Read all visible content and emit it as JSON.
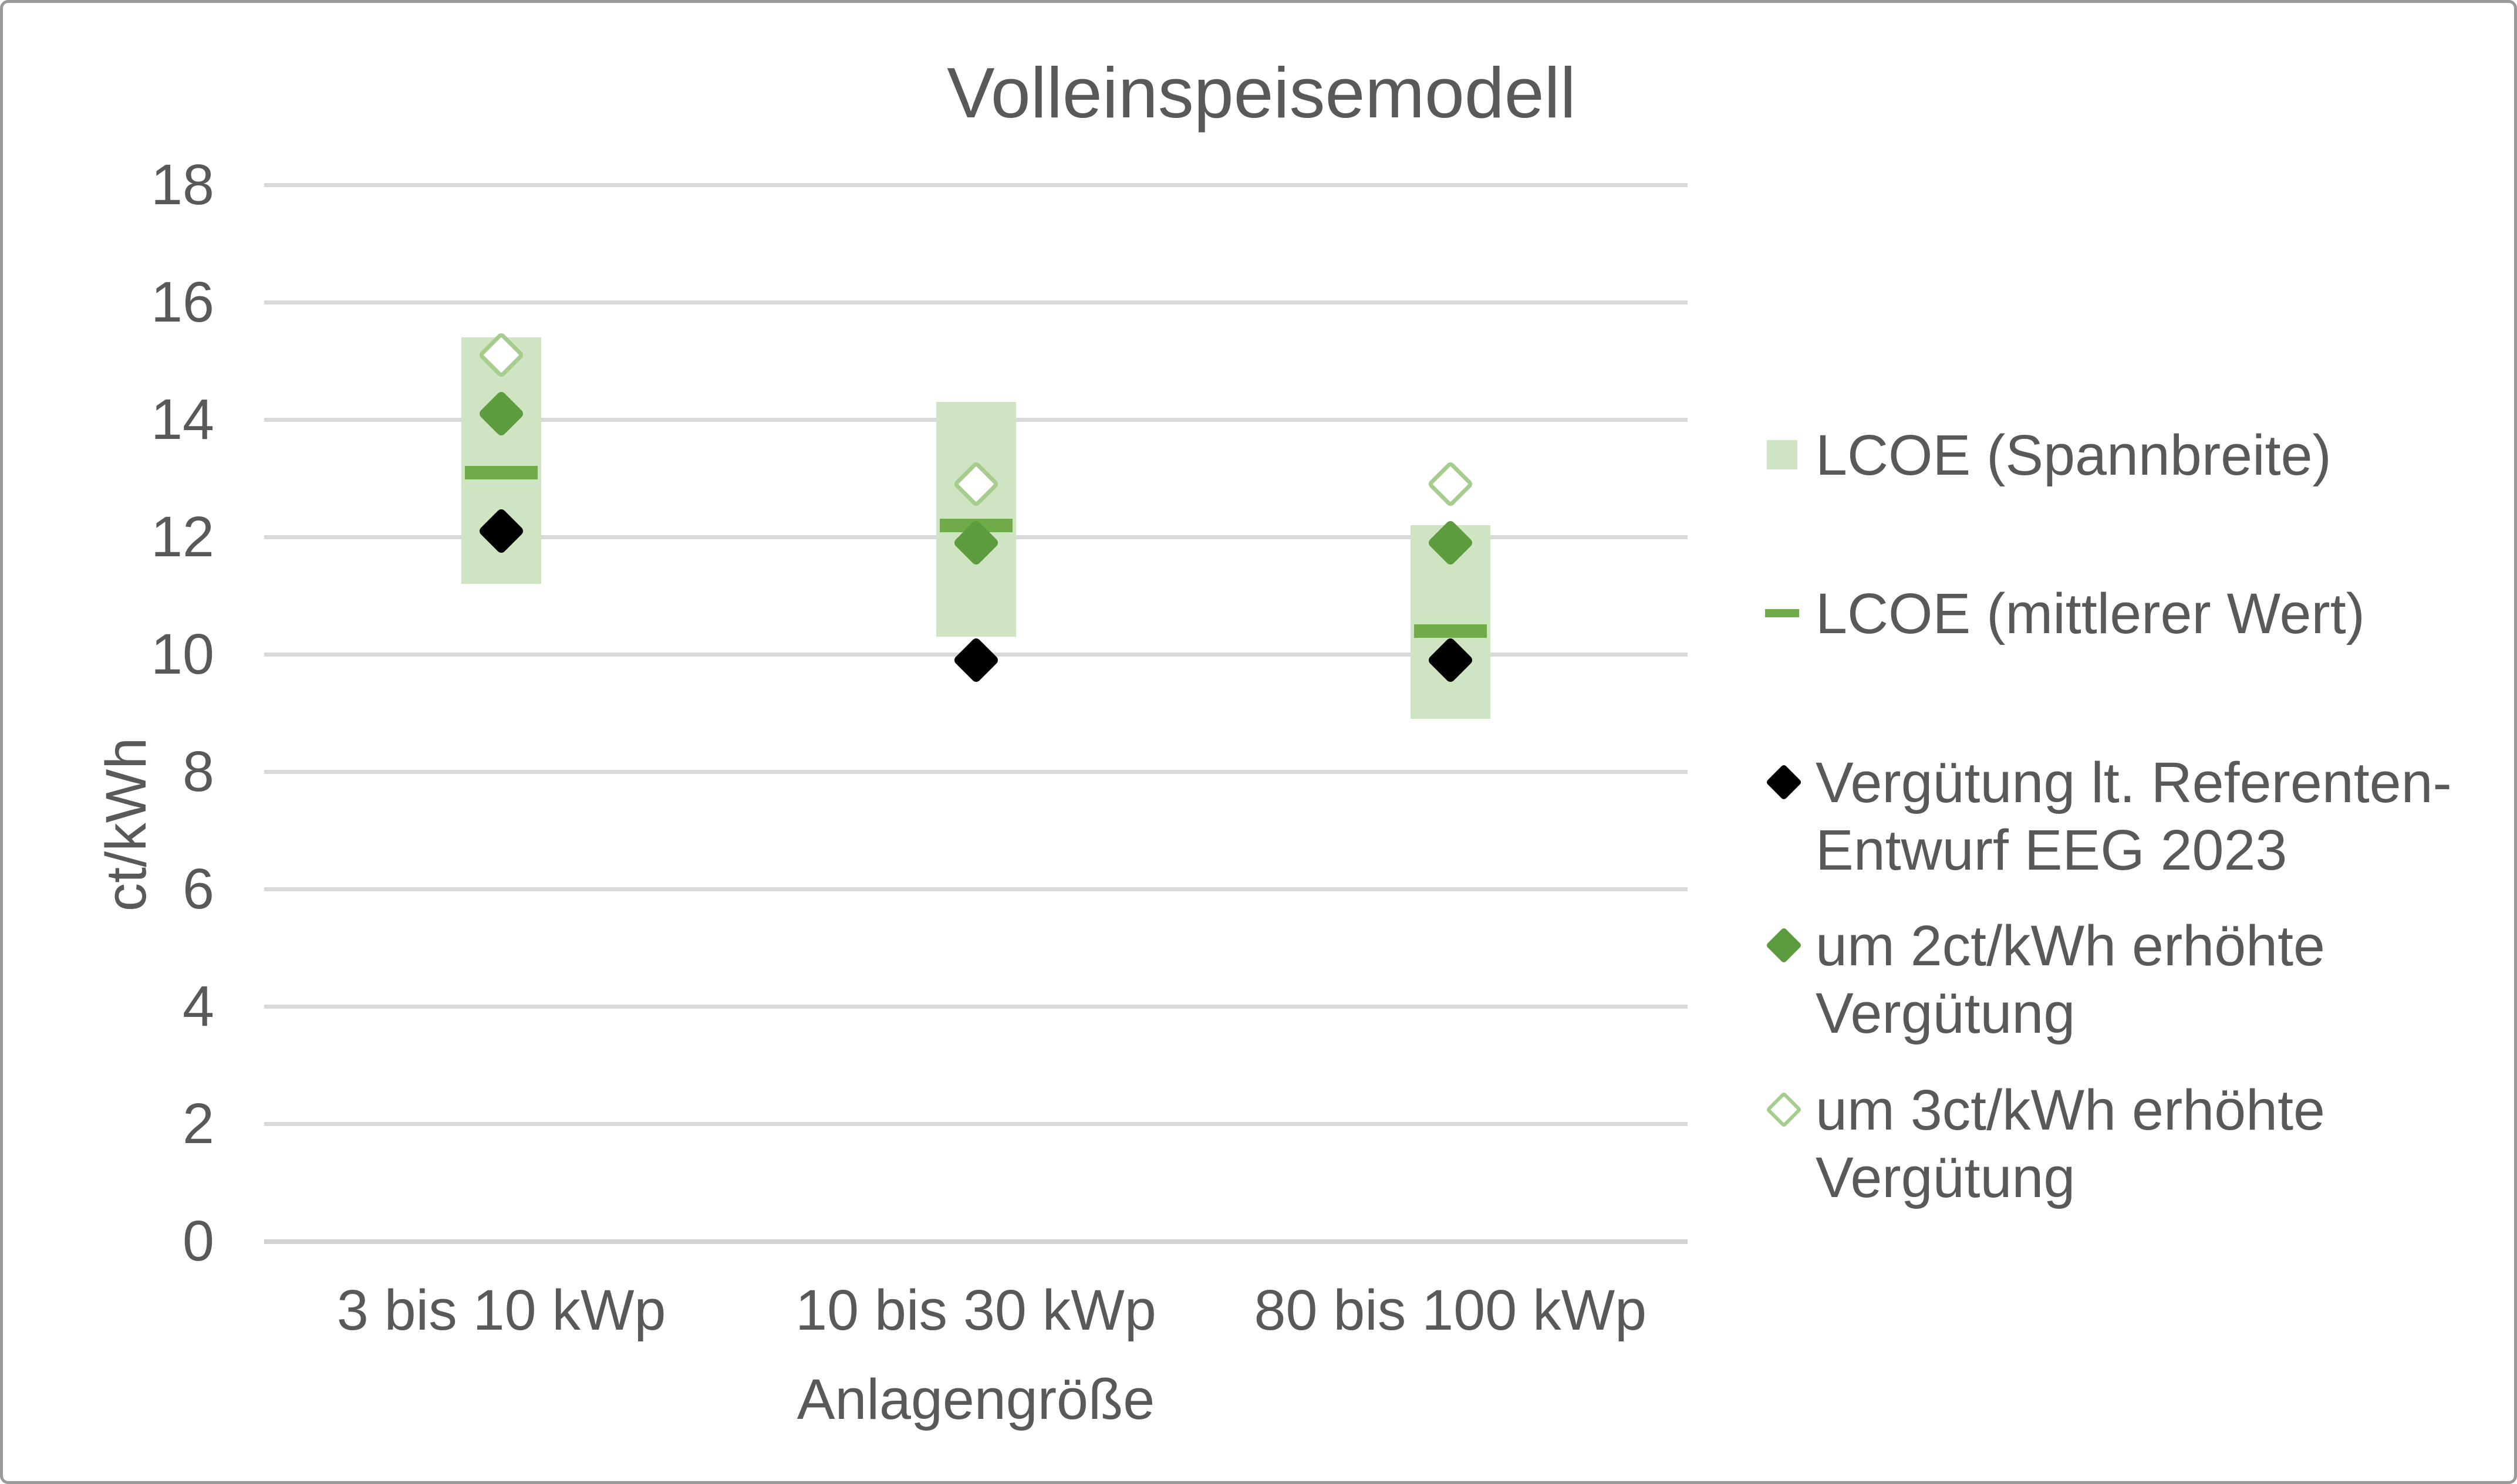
{
  "title": "Volleinspeisemodell",
  "y_axis": {
    "label": "ct/kWh",
    "tick_labels": [
      "0",
      "2",
      "4",
      "6",
      "8",
      "10",
      "12",
      "14",
      "16",
      "18"
    ]
  },
  "x_axis": {
    "label": "Anlagengröße"
  },
  "legend": {
    "items": [
      {
        "id": "lcoe-range",
        "marker": "square",
        "lines": [
          "LCOE (Spannbreite)"
        ]
      },
      {
        "id": "lcoe-mean",
        "marker": "dash",
        "lines": [
          "LCOE (mittlerer Wert)"
        ]
      },
      {
        "id": "verguetung",
        "marker": "diamond-black",
        "lines": [
          "Vergütung lt. Referenten-",
          "Entwurf EEG 2023"
        ]
      },
      {
        "id": "plus2ct",
        "marker": "diamond-green",
        "lines": [
          "um 2ct/kWh erhöhte",
          "Vergütung"
        ]
      },
      {
        "id": "plus3ct",
        "marker": "diamond-outline",
        "lines": [
          "um 3ct/kWh erhöhte",
          "Vergütung"
        ]
      }
    ]
  },
  "colors": {
    "bar_fill": "#cfe4c2",
    "mean_line": "#6fab49",
    "diamond_green": "#5d9c3e",
    "diamond_outline": "#a6cd8d",
    "diamond_black": "#000000",
    "gridline": "#d9d9d9",
    "text": "#595959"
  },
  "chart_data": {
    "type": "bar",
    "subtype": "floating-range-bar-with-scatter-markers",
    "title": "Volleinspeisemodell",
    "xlabel": "Anlagengröße",
    "ylabel": "ct/kWh",
    "ylim": [
      0,
      18
    ],
    "ytick_step": 2,
    "grid": true,
    "legend_position": "right",
    "categories": [
      "3 bis 10 kWp",
      "10 bis 30 kWp",
      "80 bis 100 kWp"
    ],
    "series": [
      {
        "name": "LCOE (Spannbreite)",
        "type": "range",
        "low": [
          11.2,
          10.3,
          8.9
        ],
        "high": [
          15.4,
          14.3,
          12.2
        ]
      },
      {
        "name": "LCOE (mittlerer Wert)",
        "type": "dash",
        "values": [
          13.1,
          12.2,
          10.4
        ]
      },
      {
        "name": "Vergütung lt. Referenten-Entwurf EEG 2023",
        "type": "diamond-black",
        "values": [
          12.1,
          9.9,
          9.9
        ]
      },
      {
        "name": "um 2ct/kWh erhöhte Vergütung",
        "type": "diamond-green",
        "values": [
          14.1,
          11.9,
          11.9
        ]
      },
      {
        "name": "um 3ct/kWh erhöhte Vergütung",
        "type": "diamond-outline",
        "values": [
          15.1,
          12.9,
          12.9
        ]
      }
    ]
  }
}
